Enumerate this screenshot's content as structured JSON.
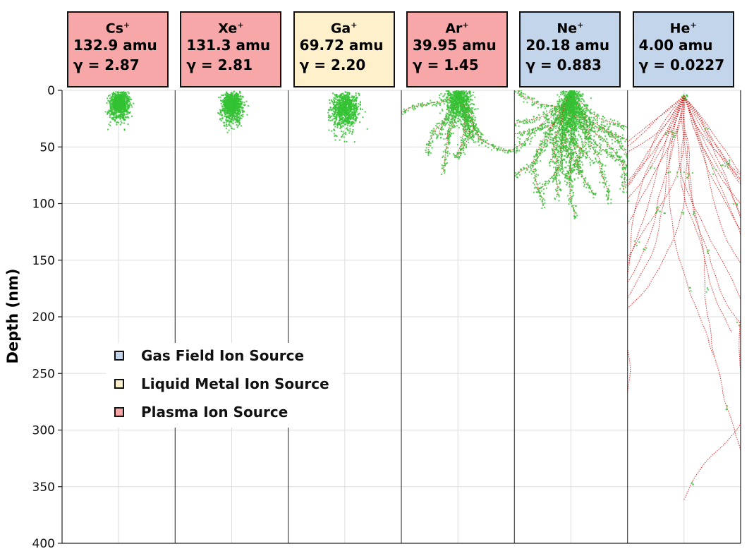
{
  "chart_data": {
    "type": "scatter",
    "ylabel": "Depth (nm)",
    "ylim": [
      0,
      400
    ],
    "yticks": [
      "0",
      "50",
      "100",
      "150",
      "200",
      "250",
      "300",
      "350",
      "400"
    ],
    "grid": true,
    "legend_position": "lower-left",
    "legend": [
      {
        "label": "Gas Field Ion Source",
        "color": "#c3d5ea"
      },
      {
        "label": "Liquid Metal Ion Source",
        "color": "#fdf0cb"
      },
      {
        "label": "Plasma Ion Source",
        "color": "#f7a7a7"
      }
    ],
    "panels": [
      {
        "ion": "Cs",
        "charge": "+",
        "mass": "132.9 amu",
        "gamma": "γ = 2.87",
        "source": "Plasma Ion Source",
        "max_depth": 40
      },
      {
        "ion": "Xe",
        "charge": "+",
        "mass": "131.3 amu",
        "gamma": "γ = 2.81",
        "source": "Plasma Ion Source",
        "max_depth": 45
      },
      {
        "ion": "Ga",
        "charge": "+",
        "mass": "69.72 amu",
        "gamma": "γ = 2.20",
        "source": "Liquid Metal Ion Source",
        "max_depth": 55
      },
      {
        "ion": "Ar",
        "charge": "+",
        "mass": "39.95 amu",
        "gamma": "γ = 1.45",
        "source": "Plasma Ion Source",
        "max_depth": 75
      },
      {
        "ion": "Ne",
        "charge": "+",
        "mass": "20.18 amu",
        "gamma": "γ = 0.883",
        "source": "Gas Field Ion Source",
        "max_depth": 125
      },
      {
        "ion": "He",
        "charge": "+",
        "mass": "4.00 amu",
        "gamma": "γ = 0.0227",
        "source": "Gas Field Ion Source",
        "max_depth": 400
      }
    ],
    "colors": {
      "recoils": "#33c233",
      "ion_tracks": "#e31b1b"
    }
  }
}
